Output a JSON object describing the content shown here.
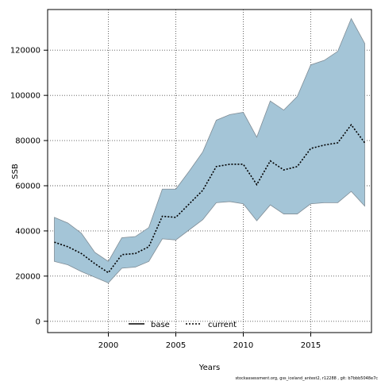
{
  "chart_data": {
    "type": "area",
    "xlabel": "Years",
    "ylabel": "SSB",
    "xlim": [
      1995.5,
      2019.5
    ],
    "ylim": [
      -5000,
      138000
    ],
    "x_ticks": [
      2000,
      2005,
      2010,
      2015
    ],
    "y_ticks": [
      0,
      20000,
      40000,
      60000,
      80000,
      100000,
      120000
    ],
    "grid": true,
    "legend": {
      "position": "bottom-center",
      "entries": [
        "base",
        "current"
      ]
    },
    "x": [
      1996,
      1997,
      1998,
      1999,
      2000,
      2001,
      2002,
      2003,
      2004,
      2005,
      2006,
      2007,
      2008,
      2009,
      2010,
      2011,
      2012,
      2013,
      2014,
      2015,
      2016,
      2017,
      2018,
      2019
    ],
    "series": [
      {
        "name": "current",
        "style": "dotted",
        "color": "#000000",
        "values": [
          35000,
          33000,
          30000,
          25500,
          21500,
          29500,
          30000,
          33000,
          46500,
          46000,
          52000,
          58000,
          68500,
          69500,
          69500,
          60500,
          71000,
          67000,
          68500,
          76500,
          78000,
          79000,
          87000,
          79000
        ]
      }
    ],
    "band": {
      "fill": "#a4c5d7",
      "edge": "#7f8c95",
      "lower": [
        26500,
        25000,
        22000,
        19500,
        17000,
        23500,
        24000,
        26500,
        36500,
        36000,
        40500,
        45000,
        52500,
        53000,
        52000,
        44500,
        51500,
        47500,
        47500,
        52000,
        52500,
        52500,
        57500,
        51000
      ],
      "upper": [
        46000,
        43500,
        39000,
        30500,
        26500,
        37000,
        37500,
        41500,
        58500,
        58500,
        66500,
        75000,
        89000,
        91500,
        92500,
        81500,
        97500,
        93500,
        99500,
        113500,
        115500,
        119500,
        134000,
        123000
      ]
    }
  },
  "legend_labels": {
    "base": "base",
    "current": "current"
  },
  "footnote": "stockassessment.org, gss_iceland_antest2, r12288 , git: b7bbb5048e7c"
}
